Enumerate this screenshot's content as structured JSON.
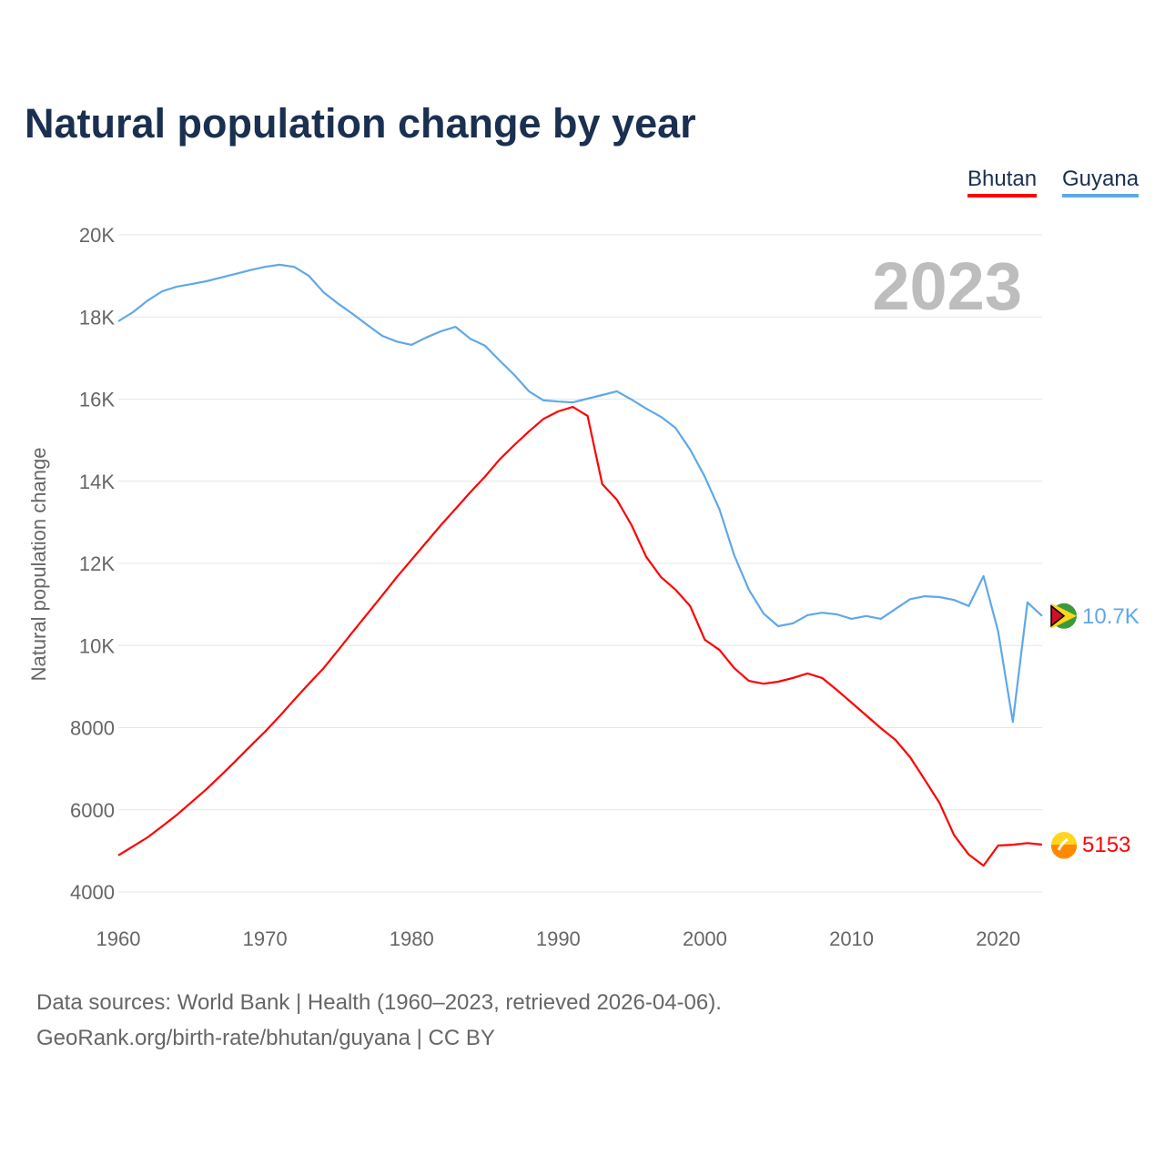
{
  "title": "Natural population change by year",
  "footer": {
    "line1": "Data sources: World Bank | Health (1960–2023, retrieved 2026-04-06).",
    "line2": "GeoRank.org/birth-rate/bhutan/guyana | CC BY"
  },
  "chart_data": {
    "type": "line",
    "title": "Natural population change by year",
    "xlabel": "",
    "ylabel": "Natural population change",
    "year_label": "2023",
    "xlim": [
      1960,
      2023
    ],
    "ylim": [
      4000,
      20000
    ],
    "x_ticks": [
      1960,
      1970,
      1980,
      1990,
      2000,
      2010,
      2020
    ],
    "y_ticks": [
      4000,
      6000,
      8000,
      10000,
      12000,
      14000,
      16000,
      18000,
      20000
    ],
    "y_tick_labels": [
      "4000",
      "6000",
      "8000",
      "10K",
      "12K",
      "14K",
      "16K",
      "18K",
      "20K"
    ],
    "grid": true,
    "legend_position": "top-right",
    "x": [
      1960,
      1961,
      1962,
      1963,
      1964,
      1965,
      1966,
      1967,
      1968,
      1969,
      1970,
      1971,
      1972,
      1973,
      1974,
      1975,
      1976,
      1977,
      1978,
      1979,
      1980,
      1981,
      1982,
      1983,
      1984,
      1985,
      1986,
      1987,
      1988,
      1989,
      1990,
      1991,
      1992,
      1993,
      1994,
      1995,
      1996,
      1997,
      1998,
      1999,
      2000,
      2001,
      2002,
      2003,
      2004,
      2005,
      2006,
      2007,
      2008,
      2009,
      2010,
      2011,
      2012,
      2013,
      2014,
      2015,
      2016,
      2017,
      2018,
      2019,
      2020,
      2021,
      2022,
      2023
    ],
    "series": [
      {
        "name": "Bhutan",
        "color": "#ff0000",
        "end_label": "5153",
        "flag": "bhutan-flag",
        "values": [
          4890,
          5110,
          5330,
          5600,
          5880,
          6190,
          6500,
          6840,
          7190,
          7550,
          7900,
          8280,
          8680,
          9070,
          9450,
          9890,
          10340,
          10780,
          11220,
          11670,
          12090,
          12510,
          12930,
          13330,
          13730,
          14110,
          14530,
          14880,
          15210,
          15520,
          15700,
          15810,
          15590,
          13930,
          13550,
          12930,
          12160,
          11670,
          11360,
          10960,
          10140,
          9890,
          9450,
          9140,
          9070,
          9120,
          9210,
          9320,
          9210,
          8920,
          8610,
          8300,
          7990,
          7700,
          7280,
          6730,
          6170,
          5380,
          4910,
          4640,
          5130,
          5150,
          5190,
          5153
        ]
      },
      {
        "name": "Guyana",
        "color": "#5fa8e8",
        "end_label": "10.7K",
        "flag": "guyana-flag",
        "values": [
          17895,
          18116,
          18400,
          18625,
          18740,
          18800,
          18870,
          18960,
          19050,
          19140,
          19220,
          19270,
          19220,
          19000,
          18600,
          18320,
          18070,
          17800,
          17540,
          17400,
          17320,
          17500,
          17650,
          17760,
          17470,
          17300,
          16940,
          16590,
          16190,
          15970,
          15940,
          15920,
          16010,
          16100,
          16190,
          15990,
          15770,
          15570,
          15300,
          14770,
          14110,
          13310,
          12200,
          11360,
          10780,
          10470,
          10540,
          10740,
          10800,
          10760,
          10650,
          10720,
          10650,
          10890,
          11130,
          11200,
          11180,
          11110,
          10960,
          11690,
          10340,
          8140,
          11050,
          10720
        ]
      }
    ]
  }
}
